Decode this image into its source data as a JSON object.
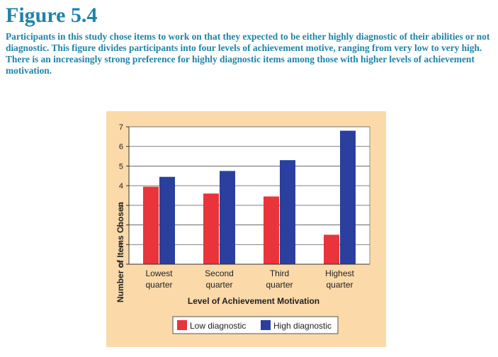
{
  "figure": {
    "title": "Figure 5.4",
    "caption": "Participants in this study chose items to work on that they expected to be either highly diagnostic of their abilities or not diagnostic. This figure divides participants into four levels of achievement motive, ranging from very low to very high. There is an increasingly strong preference for highly diagnostic items among those with higher levels of achievement motivation."
  },
  "colors": {
    "title": "#1f84a8",
    "panel_background": "#fbd9a9",
    "plot_background": "#ffffff",
    "low_diagnostic": "#e8343a",
    "high_diagnostic": "#2b3f9e"
  },
  "chart_data": {
    "type": "bar",
    "categories": [
      [
        "Lowest",
        "quarter"
      ],
      [
        "Second",
        "quarter"
      ],
      [
        "Third",
        "quarter"
      ],
      [
        "Highest",
        "quarter"
      ]
    ],
    "series": [
      {
        "name": "Low diagnostic",
        "color": "#e8343a",
        "values": [
          3.95,
          3.6,
          3.45,
          1.5
        ]
      },
      {
        "name": "High diagnostic",
        "color": "#2b3f9e",
        "values": [
          4.45,
          4.75,
          5.3,
          6.8
        ]
      }
    ],
    "xlabel": "Level of Achievement Motivation",
    "ylabel": "Number of Items Chosen",
    "ylim": [
      0,
      7
    ],
    "yticks": [
      0,
      1,
      2,
      3,
      4,
      5,
      6,
      7
    ],
    "grid": true,
    "legend_position": "bottom"
  }
}
